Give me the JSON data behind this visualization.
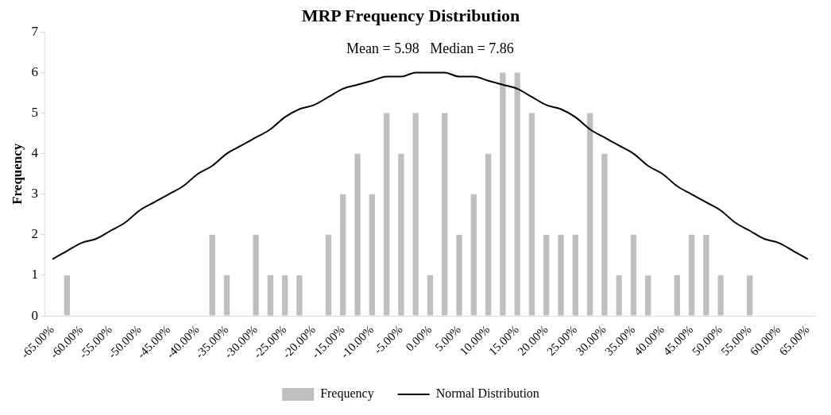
{
  "chart_data": {
    "type": "bar",
    "title": "MRP Frequency Distribution",
    "ylabel": "Frequency",
    "categories": [
      "-65.00%",
      null,
      "-60.00%",
      null,
      "-55.00%",
      null,
      "-50.00%",
      null,
      "-45.00%",
      null,
      "-40.00%",
      null,
      "-35.00%",
      null,
      "-30.00%",
      null,
      "-25.00%",
      null,
      "-20.00%",
      null,
      "-15.00%",
      null,
      "-10.00%",
      null,
      "-5.00%",
      null,
      "0.00%",
      null,
      "5.00%",
      null,
      "10.00%",
      null,
      "15.00%",
      null,
      "20.00%",
      null,
      "25.00%",
      null,
      "30.00%",
      null,
      "35.00%",
      null,
      "40.00%",
      null,
      "45.00%",
      null,
      "50.00%",
      null,
      "55.00%",
      null,
      "60.00%",
      null,
      "65.00%"
    ],
    "series": [
      {
        "name": "Frequency",
        "color": "#bfbfbf",
        "values": [
          0,
          1,
          0,
          0,
          0,
          0,
          0,
          0,
          0,
          0,
          0,
          2,
          1,
          0,
          2,
          1,
          1,
          1,
          0,
          2,
          3,
          4,
          3,
          5,
          4,
          5,
          1,
          5,
          2,
          3,
          4,
          6,
          6,
          5,
          2,
          2,
          2,
          5,
          4,
          1,
          2,
          1,
          0,
          1,
          2,
          2,
          1,
          0,
          1,
          0,
          0,
          0,
          0
        ]
      },
      {
        "name": "Normal Distribution",
        "type": "line",
        "color": "#000000",
        "values": [
          1.4,
          1.6,
          1.8,
          1.9,
          2.1,
          2.3,
          2.6,
          2.8,
          3.0,
          3.2,
          3.5,
          3.7,
          4.0,
          4.2,
          4.4,
          4.6,
          4.9,
          5.1,
          5.2,
          5.4,
          5.6,
          5.7,
          5.8,
          5.9,
          5.9,
          6.0,
          6.0,
          6.0,
          5.9,
          5.9,
          5.8,
          5.7,
          5.6,
          5.4,
          5.2,
          5.1,
          4.9,
          4.6,
          4.4,
          4.2,
          4.0,
          3.7,
          3.5,
          3.2,
          3.0,
          2.8,
          2.6,
          2.3,
          2.1,
          1.9,
          1.8,
          1.6,
          1.4
        ]
      }
    ],
    "ylim": [
      0,
      7
    ],
    "yticks": [
      0,
      1,
      2,
      3,
      4,
      5,
      6,
      7
    ],
    "grid": false,
    "legend": "bottom",
    "marker": "none",
    "annotations": [
      "Mean = 5.98   Median = 7.86"
    ]
  }
}
